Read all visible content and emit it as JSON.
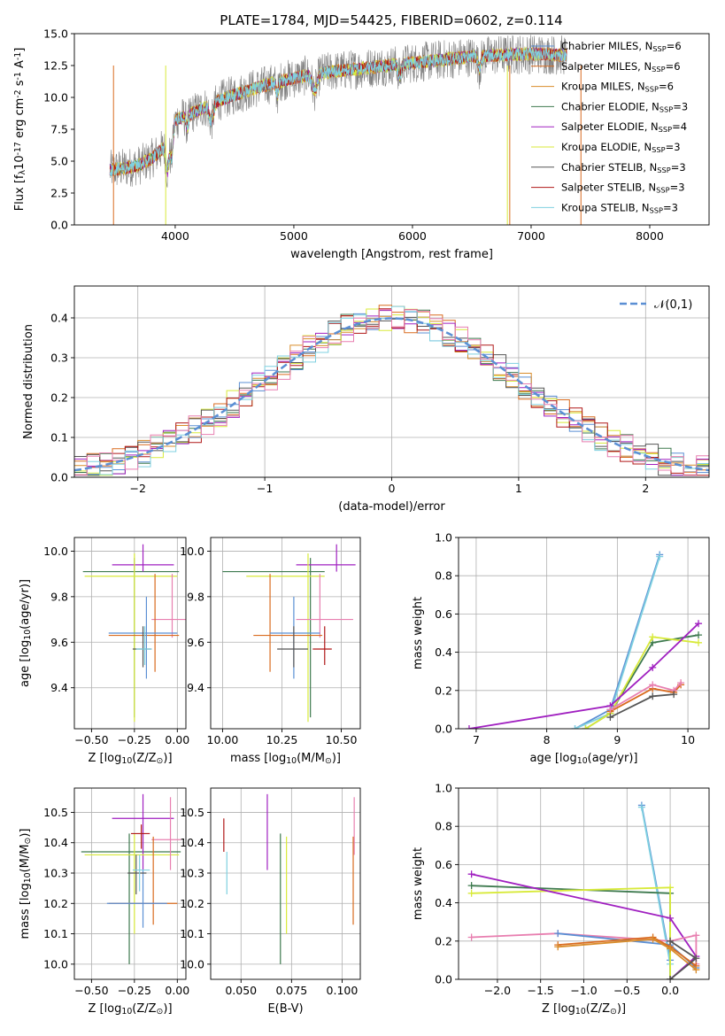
{
  "title": "PLATE=1784, MJD=54425, FIBERID=0602, z=0.114",
  "colors": {
    "chabrier_miles": "#5b8fd4",
    "salpeter_miles": "#d96b1f",
    "kroupa_miles": "#d98c2a",
    "chabrier_elodie": "#3e7a4f",
    "salpeter_elodie": "#a020c0",
    "kroupa_elodie": "#d8ea3a",
    "chabrier_stelib": "#555555",
    "salpeter_stelib": "#b01818",
    "kroupa_stelib": "#7fd0e0",
    "pink": "#e87fb0",
    "gauss": "#5b8fd4"
  },
  "chart_data": [
    {
      "id": "spectrum",
      "type": "line",
      "title": "PLATE=1784, MJD=54425, FIBERID=0602, z=0.114",
      "xlabel": "wavelength [Angstrom, rest frame]",
      "ylabel": "Flux [f$_\\lambda$10$^{-17}$ erg cm$^{-2}$ s$^{-1}$ A$^{-1}$]",
      "xlim": [
        3150,
        8500
      ],
      "ylim": [
        0,
        15
      ],
      "xticks": [
        4000,
        5000,
        6000,
        7000,
        8000
      ],
      "yticks": [
        0.0,
        2.5,
        5.0,
        7.5,
        10.0,
        12.5,
        15.0
      ],
      "legend_position": "top-right",
      "legend": [
        {
          "label": "Chabrier MILES, N$_{SSP}$=6",
          "color": "#5b8fd4"
        },
        {
          "label": "Salpeter MILES, N$_{SSP}$=6",
          "color": "#d96b1f"
        },
        {
          "label": "Kroupa MILES, N$_{SSP}$=6",
          "color": "#d98c2a"
        },
        {
          "label": "Chabrier ELODIE, N$_{SSP}$=3",
          "color": "#3e7a4f"
        },
        {
          "label": "Salpeter ELODIE, N$_{SSP}$=4",
          "color": "#a020c0"
        },
        {
          "label": "Kroupa ELODIE, N$_{SSP}$=3",
          "color": "#d8ea3a"
        },
        {
          "label": "Chabrier STELIB, N$_{SSP}$=3",
          "color": "#555555"
        },
        {
          "label": "Salpeter STELIB, N$_{SSP}$=3",
          "color": "#b01818"
        },
        {
          "label": "Kroupa STELIB, N$_{SSP}$=3",
          "color": "#7fd0e0"
        }
      ],
      "continuum": {
        "x": [
          3450,
          3600,
          3700,
          3800,
          3900,
          3950,
          4000,
          4100,
          4200,
          4300,
          4500,
          4700,
          4900,
          5100,
          5300,
          5500,
          5700,
          5900,
          6100,
          6300,
          6500,
          6700,
          6900,
          7100,
          7300
        ],
        "y": [
          4.3,
          4.5,
          4.7,
          5.2,
          6.0,
          7.0,
          8.2,
          8.6,
          9.0,
          9.5,
          10.2,
          10.8,
          11.3,
          11.7,
          12.0,
          12.2,
          12.4,
          12.6,
          12.8,
          13.0,
          13.2,
          13.3,
          13.4,
          13.4,
          13.3
        ]
      }
    },
    {
      "id": "residuals",
      "type": "line",
      "xlabel": "(data-model)/error",
      "ylabel": "Normed distribution",
      "xlim": [
        -2.5,
        2.5
      ],
      "ylim": [
        0,
        0.48
      ],
      "xticks": [
        -2,
        -1,
        0,
        1,
        2
      ],
      "yticks": [
        0.0,
        0.1,
        0.2,
        0.3,
        0.4
      ],
      "legend_position": "top-right",
      "gauss_label": "$\\mathcal{N}(0,1)$",
      "bin_width": 0.1
    },
    {
      "id": "age_vs_Z",
      "type": "scatter",
      "xlabel": "Z [log$_{10}$(Z/Z$_\\odot$)]",
      "ylabel": "age  [log$_{10}$(age/yr)]",
      "xlim": [
        -0.6,
        0.05
      ],
      "ylim": [
        9.22,
        10.06
      ],
      "xticks": [
        -0.5,
        -0.25,
        0.0
      ],
      "xticklabels": [
        "−0.50",
        "−0.25",
        "0.00"
      ],
      "yticks": [
        9.4,
        9.6,
        9.8,
        10.0
      ],
      "points": [
        {
          "x": -0.25,
          "xl": 0.3,
          "xh": 0.26,
          "y": 9.91,
          "yl": 0.64,
          "yh": 0.06,
          "c": "#3e7a4f"
        },
        {
          "x": -0.2,
          "xl": 0.18,
          "xh": 0.18,
          "y": 9.94,
          "yl": 0.03,
          "yh": 0.09,
          "c": "#a020c0"
        },
        {
          "x": -0.25,
          "xl": 0.29,
          "xh": 0.25,
          "y": 9.89,
          "yl": 0.64,
          "yh": 0.1,
          "c": "#d8ea3a"
        },
        {
          "x": -0.03,
          "xl": 0.12,
          "xh": 0.11,
          "y": 9.7,
          "yl": 0.08,
          "yh": 0.2,
          "c": "#e87fb0"
        },
        {
          "x": -0.13,
          "xl": 0.27,
          "xh": 0.14,
          "y": 9.63,
          "yl": 0.16,
          "yh": 0.27,
          "c": "#d96b1f"
        },
        {
          "x": -0.18,
          "xl": 0.22,
          "xh": 0.18,
          "y": 9.64,
          "yl": 0.2,
          "yh": 0.16,
          "c": "#5b8fd4"
        },
        {
          "x": -0.2,
          "xl": 0.06,
          "xh": 0.05,
          "y": 9.57,
          "yl": 0.08,
          "yh": 0.1,
          "c": "#555555"
        },
        {
          "x": -0.19,
          "xl": 0.05,
          "xh": 0.04,
          "y": 9.57,
          "yl": 0.07,
          "yh": 0.1,
          "c": "#7fd0e0"
        }
      ]
    },
    {
      "id": "age_vs_mass",
      "type": "scatter",
      "xlabel": "mass [log$_{10}$(M/M$_\\odot$)]",
      "ylabel": "",
      "xlim": [
        9.95,
        10.58
      ],
      "ylim": [
        9.22,
        10.06
      ],
      "xticks": [
        10.0,
        10.25,
        10.5
      ],
      "xticklabels": [
        "10.00",
        "10.25",
        "10.50"
      ],
      "yticks": [
        9.4,
        9.6,
        9.8,
        10.0
      ],
      "points": [
        {
          "x": 10.37,
          "xl": 0.37,
          "xh": 0.06,
          "y": 9.91,
          "yl": 0.64,
          "yh": 0.06,
          "c": "#3e7a4f"
        },
        {
          "x": 10.48,
          "xl": 0.17,
          "xh": 0.08,
          "y": 9.94,
          "yl": 0.03,
          "yh": 0.09,
          "c": "#a020c0"
        },
        {
          "x": 10.36,
          "xl": 0.26,
          "xh": 0.07,
          "y": 9.89,
          "yl": 0.64,
          "yh": 0.1,
          "c": "#d8ea3a"
        },
        {
          "x": 10.41,
          "xl": 0.1,
          "xh": 0.14,
          "y": 9.7,
          "yl": 0.08,
          "yh": 0.2,
          "c": "#e87fb0"
        },
        {
          "x": 10.2,
          "xl": 0.07,
          "xh": 0.22,
          "y": 9.63,
          "yl": 0.16,
          "yh": 0.27,
          "c": "#d96b1f"
        },
        {
          "x": 10.3,
          "xl": 0.1,
          "xh": 0.11,
          "y": 9.64,
          "yl": 0.2,
          "yh": 0.16,
          "c": "#5b8fd4"
        },
        {
          "x": 10.3,
          "xl": 0.07,
          "xh": 0.06,
          "y": 9.57,
          "yl": 0.08,
          "yh": 0.1,
          "c": "#555555"
        },
        {
          "x": 10.43,
          "xl": 0.05,
          "xh": 0.03,
          "y": 9.57,
          "yl": 0.07,
          "yh": 0.1,
          "c": "#b01818"
        }
      ]
    },
    {
      "id": "massweight_vs_age",
      "type": "line",
      "xlabel": "age  [log$_{10}$(age/yr)]",
      "ylabel": "mass weight",
      "xlim": [
        6.75,
        10.3
      ],
      "ylim": [
        0,
        1.0
      ],
      "xticks": [
        7,
        8,
        9,
        10
      ],
      "yticks": [
        0.0,
        0.2,
        0.4,
        0.6,
        0.8,
        1.0
      ],
      "series": [
        {
          "c": "#5b8fd4",
          "x": [
            8.4,
            8.9,
            9.6
          ],
          "y": [
            0.0,
            0.1,
            0.91
          ]
        },
        {
          "c": "#7fd0e0",
          "x": [
            8.4,
            8.9,
            9.6
          ],
          "y": [
            0.0,
            0.08,
            0.9
          ]
        },
        {
          "c": "#3e7a4f",
          "x": [
            8.55,
            8.9,
            9.5,
            10.15
          ],
          "y": [
            0.0,
            0.08,
            0.45,
            0.49
          ]
        },
        {
          "c": "#d8ea3a",
          "x": [
            8.55,
            8.9,
            9.5,
            10.15
          ],
          "y": [
            0.0,
            0.08,
            0.48,
            0.45
          ]
        },
        {
          "c": "#a020c0",
          "x": [
            6.9,
            8.9,
            9.5,
            10.15
          ],
          "y": [
            0.0,
            0.12,
            0.32,
            0.55
          ]
        },
        {
          "c": "#d96b1f",
          "x": [
            8.9,
            9.5,
            9.8,
            9.9
          ],
          "y": [
            0.09,
            0.21,
            0.19,
            0.23
          ]
        },
        {
          "c": "#e87fb0",
          "x": [
            8.9,
            9.5,
            9.8,
            9.9
          ],
          "y": [
            0.1,
            0.23,
            0.2,
            0.24
          ]
        },
        {
          "c": "#555555",
          "x": [
            8.9,
            9.5,
            9.8
          ],
          "y": [
            0.06,
            0.17,
            0.18
          ]
        }
      ]
    },
    {
      "id": "mass_vs_Z",
      "type": "scatter",
      "xlabel": "Z [log$_{10}$(Z/Z$_\\odot$)]",
      "ylabel": "mass [log$_{10}$(M/M$_\\odot$)]",
      "xlim": [
        -0.6,
        0.05
      ],
      "ylim": [
        9.95,
        10.58
      ],
      "xticks": [
        -0.5,
        -0.25,
        0.0
      ],
      "xticklabels": [
        "−0.50",
        "−0.25",
        "0.00"
      ],
      "yticks": [
        10.0,
        10.1,
        10.2,
        10.3,
        10.4,
        10.5
      ],
      "points": [
        {
          "x": -0.28,
          "xl": 0.28,
          "xh": 0.3,
          "y": 10.37,
          "yl": 0.37,
          "yh": 0.06,
          "c": "#3e7a4f"
        },
        {
          "x": -0.2,
          "xl": 0.18,
          "xh": 0.18,
          "y": 10.48,
          "yl": 0.17,
          "yh": 0.08,
          "c": "#a020c0"
        },
        {
          "x": -0.25,
          "xl": 0.29,
          "xh": 0.26,
          "y": 10.36,
          "yl": 0.26,
          "yh": 0.07,
          "c": "#d8ea3a"
        },
        {
          "x": -0.04,
          "xl": 0.11,
          "xh": 0.06,
          "y": 10.41,
          "yl": 0.1,
          "yh": 0.14,
          "c": "#e87fb0"
        },
        {
          "x": -0.14,
          "xl": 0.26,
          "xh": 0.14,
          "y": 10.2,
          "yl": 0.07,
          "yh": 0.22,
          "c": "#d96b1f"
        },
        {
          "x": -0.2,
          "xl": 0.21,
          "xh": 0.14,
          "y": 10.2,
          "yl": 0.08,
          "yh": 0.11,
          "c": "#5b8fd4"
        },
        {
          "x": -0.24,
          "xl": 0.05,
          "xh": 0.06,
          "y": 10.3,
          "yl": 0.07,
          "yh": 0.06,
          "c": "#555555"
        },
        {
          "x": -0.21,
          "xl": 0.06,
          "xh": 0.05,
          "y": 10.43,
          "yl": 0.05,
          "yh": 0.03,
          "c": "#b01818"
        },
        {
          "x": -0.22,
          "xl": 0.04,
          "xh": 0.06,
          "y": 10.31,
          "yl": 0.07,
          "yh": 0.05,
          "c": "#7fd0e0"
        }
      ]
    },
    {
      "id": "mass_vs_ebv",
      "type": "scatter",
      "xlabel": "E(B-V)",
      "ylabel": "",
      "xlim": [
        0.035,
        0.109
      ],
      "ylim": [
        9.95,
        10.58
      ],
      "xticks": [
        0.05,
        0.075,
        0.1
      ],
      "xticklabels": [
        "0.050",
        "0.075",
        "0.100"
      ],
      "yticks": [
        10.0,
        10.1,
        10.2,
        10.3,
        10.4,
        10.5
      ],
      "points": [
        {
          "x": 0.0415,
          "y": 10.42,
          "yl": 0.05,
          "yh": 0.06,
          "c": "#b01818"
        },
        {
          "x": 0.043,
          "y": 10.3,
          "yl": 0.07,
          "yh": 0.07,
          "c": "#7fd0e0"
        },
        {
          "x": 0.063,
          "y": 10.44,
          "yl": 0.13,
          "yh": 0.12,
          "c": "#a020c0"
        },
        {
          "x": 0.0695,
          "y": 10.21,
          "yl": 0.21,
          "yh": 0.22,
          "c": "#3e7a4f"
        },
        {
          "x": 0.0725,
          "y": 10.26,
          "yl": 0.16,
          "yh": 0.16,
          "c": "#d8ea3a"
        },
        {
          "x": 0.1055,
          "y": 10.31,
          "yl": 0.18,
          "yh": 0.11,
          "c": "#d96b1f"
        },
        {
          "x": 0.106,
          "y": 10.45,
          "yl": 0.09,
          "yh": 0.1,
          "c": "#e87fb0"
        }
      ]
    },
    {
      "id": "massweight_vs_Z",
      "type": "line",
      "xlabel": "Z [log$_{10}$(Z/Z$_\\odot$)]",
      "ylabel": "mass weight",
      "xlim": [
        -2.45,
        0.45
      ],
      "ylim": [
        0,
        1.0
      ],
      "xticks": [
        -2.0,
        -1.5,
        -1.0,
        -0.5,
        0.0
      ],
      "xticklabels": [
        "−2.0",
        "−1.5",
        "−1.0",
        "−0.5",
        "0.0"
      ],
      "yticks": [
        0.0,
        0.2,
        0.4,
        0.6,
        0.8,
        1.0
      ],
      "series": [
        {
          "c": "#5b8fd4",
          "x": [
            -0.33,
            0.0,
            0.0
          ],
          "y": [
            0.91,
            0.1,
            0.0
          ]
        },
        {
          "c": "#7fd0e0",
          "x": [
            -0.33,
            0.0,
            0.0
          ],
          "y": [
            0.9,
            0.08,
            0.0
          ]
        },
        {
          "c": "#3e7a4f",
          "x": [
            -2.3,
            0.0,
            0.0
          ],
          "y": [
            0.49,
            0.45,
            0.0
          ]
        },
        {
          "c": "#d8ea3a",
          "x": [
            -2.3,
            0.0,
            0.0
          ],
          "y": [
            0.45,
            0.48,
            0.0
          ]
        },
        {
          "c": "#a020c0",
          "x": [
            -2.3,
            0.0,
            0.3,
            0.0
          ],
          "y": [
            0.55,
            0.32,
            0.12,
            0.0
          ]
        },
        {
          "c": "#e87fb0",
          "x": [
            -2.3,
            -1.3,
            0.0,
            0.3,
            0.3
          ],
          "y": [
            0.22,
            0.24,
            0.2,
            0.23,
            0.08
          ]
        },
        {
          "c": "#5b8fd4",
          "x": [
            -1.3,
            0.0,
            0.3
          ],
          "y": [
            0.24,
            0.18,
            0.06
          ]
        },
        {
          "c": "#d96b1f",
          "x": [
            -1.3,
            -0.2,
            0.0,
            0.3
          ],
          "y": [
            0.18,
            0.22,
            0.17,
            0.07
          ]
        },
        {
          "c": "#d98c2a",
          "x": [
            -1.3,
            -0.2,
            0.0,
            0.3
          ],
          "y": [
            0.17,
            0.21,
            0.16,
            0.05
          ]
        },
        {
          "c": "#555555",
          "x": [
            0.0,
            0.3,
            0.0
          ],
          "y": [
            0.2,
            0.11,
            0.0
          ]
        }
      ]
    }
  ]
}
